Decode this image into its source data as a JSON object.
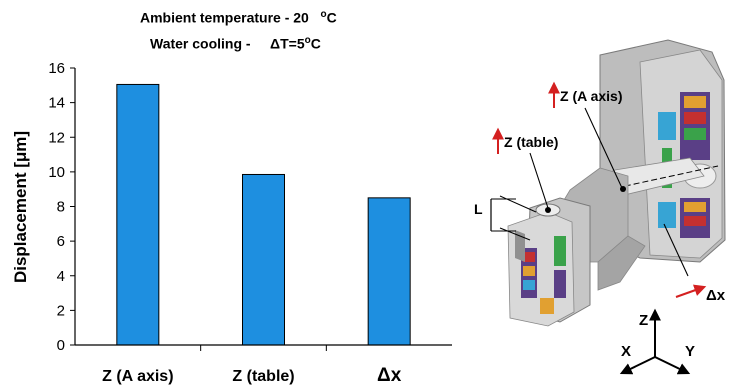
{
  "titles": {
    "line1_text": "Ambient temperature - 20",
    "line1_sup": "o",
    "line1_unit": "C",
    "line2_text": "Water cooling -",
    "line2_delta": "ΔT=5",
    "line2_sup": "o",
    "line2_unit": "C"
  },
  "chart_data": {
    "type": "bar",
    "categories": [
      "Z (A axis)",
      "Z (table)",
      "Δx"
    ],
    "values": [
      15.05,
      9.85,
      8.5
    ],
    "ylabel": "Displacement [μm]",
    "ylim": [
      0,
      16
    ],
    "yticks": [
      0,
      2,
      4,
      6,
      8,
      10,
      12,
      14,
      16
    ],
    "bar_color": "#1e8fe0",
    "grid": false
  },
  "diagram": {
    "labels": {
      "z_a_axis": "Z (A axis)",
      "z_table": "Z (table)",
      "l_dim": "L",
      "delta_x": "Δx"
    },
    "axes_triad": {
      "z": "Z",
      "x": "X",
      "y": "Y"
    },
    "arrow_color": "#d42020"
  }
}
